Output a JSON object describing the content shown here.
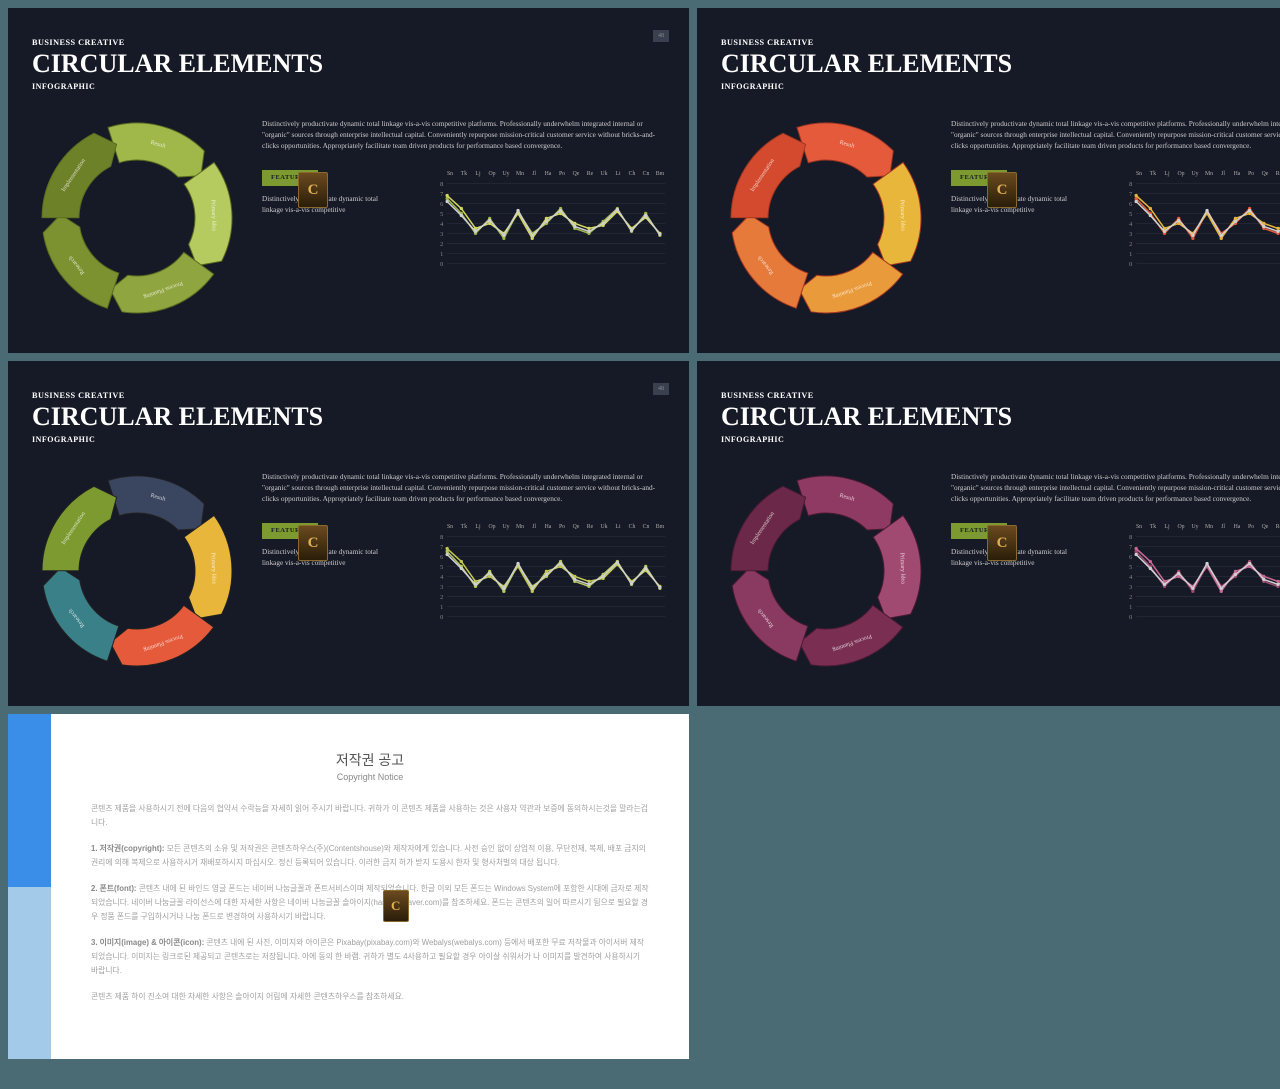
{
  "slide_template": {
    "kicker": "BUSINESS CREATIVE",
    "title": "CIRCULAR ELEMENTS",
    "subtitle": "INFOGRAPHIC",
    "description": "Distinctively productivate dynamic total linkage vis-a-vis competitive platforms. Professionally underwhelm integrated internal or \"organic\" sources through enterprise intellectual capital. Conveniently repurpose mission-critical customer service without bricks-and-clicks opportunities. Appropriately facilitate team driven products for performance based convergence.",
    "features_label": "FEATURES",
    "features_text": "Distinctively productivate dynamic total linkage vis-a-vis competitive",
    "page_tag": "48",
    "badge_letter": "C",
    "segment_labels": [
      "Result",
      "Primary Idea",
      "Process Planning",
      "Research",
      "Implementation"
    ],
    "chart": {
      "x_labels": [
        "Sn",
        "Tk",
        "Lj",
        "Op",
        "Uy",
        "Mn",
        "Jl",
        "Ha",
        "Po",
        "Qe",
        "Re",
        "Uk",
        "Li",
        "Ch",
        "Cn",
        "Bm"
      ],
      "y_ticks": [
        "8",
        "7",
        "6",
        "5",
        "4",
        "3",
        "2",
        "1",
        "0"
      ],
      "series_a": [
        6.5,
        5.0,
        3.0,
        4.5,
        2.5,
        5.2,
        3.0,
        4.0,
        5.5,
        3.5,
        3.0,
        4.2,
        5.5,
        3.2,
        5.0,
        2.8
      ],
      "series_b": [
        6.8,
        5.5,
        3.5,
        4.0,
        3.0,
        5.0,
        2.5,
        4.5,
        5.0,
        4.0,
        3.5,
        3.8,
        5.2,
        3.5,
        4.6,
        3.0
      ],
      "series_c": [
        6.2,
        4.8,
        3.2,
        4.3,
        2.8,
        5.3,
        2.8,
        4.2,
        5.3,
        3.7,
        3.2,
        4.0,
        5.4,
        3.3,
        4.8,
        2.9
      ],
      "grid_color": "#2a2f3d",
      "axis_color": "#888",
      "series_c_color": "#d0d0d0"
    }
  },
  "slides": [
    {
      "ring_colors": [
        "#a0b84a",
        "#b5ca5f",
        "#8fa53f",
        "#7c9231",
        "#6d8228"
      ],
      "ring_stroke": "#5a6b20",
      "chart_colors": [
        "#a0b84a",
        "#d4d860"
      ]
    },
    {
      "ring_colors": [
        "#e65a3c",
        "#e8b63a",
        "#e99a3a",
        "#e57a3a",
        "#d44a2e"
      ],
      "ring_stroke": "#a33620",
      "chart_colors": [
        "#e65a3c",
        "#e8b63a"
      ]
    },
    {
      "ring_colors": [
        "#3a4560",
        "#e8b63a",
        "#e65a3c",
        "#3a8088",
        "#7c9a2f"
      ],
      "ring_stroke": "#222",
      "chart_colors": [
        "#b5ca5f",
        "#c2c84f"
      ]
    },
    {
      "ring_colors": [
        "#8f3a62",
        "#a04a72",
        "#7a2f52",
        "#8a3a60",
        "#6b2848"
      ],
      "ring_stroke": "#4a1a32",
      "chart_colors": [
        "#a04a72",
        "#c76a96"
      ]
    }
  ],
  "notice": {
    "title": "저작권 공고",
    "subtitle": "Copyright Notice",
    "intro": "콘텐츠 제품을 사용하시기 전에 다음의 협약서 수락능을 자세히 읽어 주시기 바랍니다. 귀하가 이 콘텐츠 제품을 사용하는 것은 사용자 약관과 보증에 동의하시는것을 말라는겁니다.",
    "p1_head": "1. 저작권(copyright):",
    "p1": "모든 콘텐츠의 소유 및 저작권은 콘텐츠하우스(주)(Contentshouse)와 제작자에게 있습니다. 사전 승인 없이 상업적 이용, 무단전재, 복제, 배포 금지의 권리에 의해 복제으로 사용하시거 재배포하시지 마십시오. 정신 등록되어 있습니다. 이러한 금지 허가 받지 도용시 한자 및 형사처벌의 대상 됩니다.",
    "p2_head": "2. 폰트(font):",
    "p2": "콘텐츠 내에 된 바인드 영글 폰드는 네이버 나눔글꼴과 폰트서비스이며 제작되었습니다. 한글 이외 모든 폰드는 Windows System에 포함한 시대에 금자로 제작되었습니다. 네이버 나눔글꼴 라이선스에 대한 자세한 사항은 네이버 나눔글꼴 솔아이지(hangeul.naver.com)를 참조하세요. 폰드는 콘텐츠의 일어 따르시기 됨으로 필요할 경우 정품 폰드를 구입하시거나 나눔 폰드로 변경하여 사용하시기 바랍니다.",
    "p3_head": "3. 이미지(image) & 아이콘(icon):",
    "p3": "콘텐츠 내에 된 사진, 이미지와 아이콘은 Pixabay(pixabay.com)와 Webalys(webalys.com) 등에서 배포한 무료 저작물과 아이서버 제작되었습니다. 이미지는 링크로된 제공되고 콘텐츠로는 저장됩니다. 아에 동의 한 바램. 귀하가 별도 4사용하고 필요할 경우 아이살 쉬워서가 나 이미지를 발견하여 사용하시기 바랍니다.",
    "outro": "콘텐츠 제품 하이 진소여 대한 자세한 사항은 솔아이지 어림에 자세한 콘텐츠하우스를 참조하세요.",
    "badge_letter": "C"
  }
}
